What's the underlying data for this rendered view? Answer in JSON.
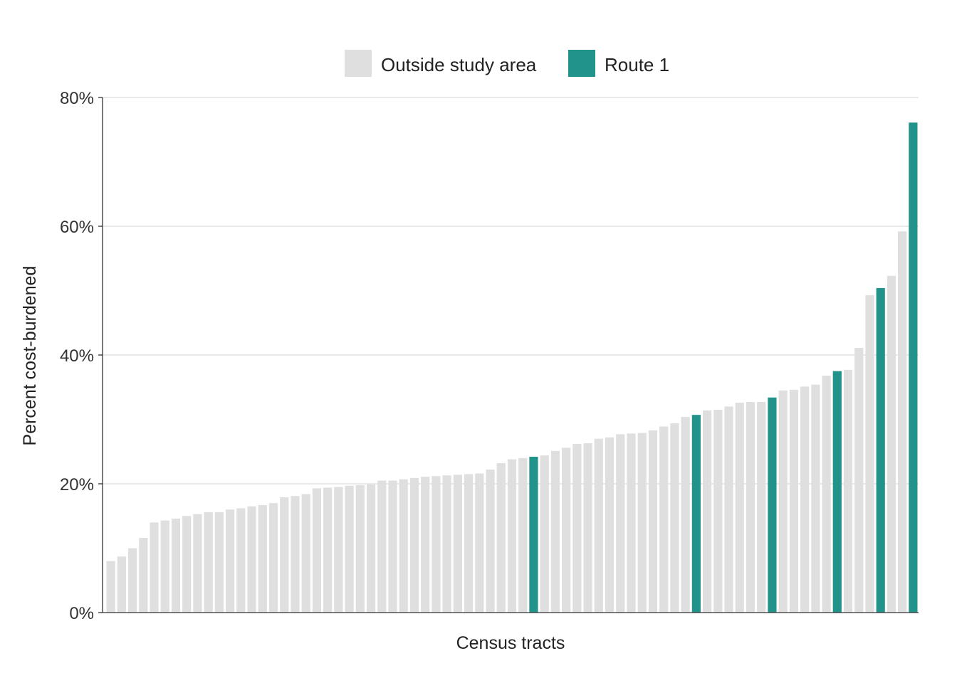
{
  "chart_data": {
    "type": "bar",
    "xlabel": "Census tracts",
    "ylabel": "Percent cost-burdened",
    "ylim": [
      0,
      80
    ],
    "yticks": [
      "0%",
      "20%",
      "40%",
      "60%",
      "80%"
    ],
    "ytick_values": [
      0,
      20,
      40,
      60,
      80
    ],
    "grid": true,
    "legend_position": "top-center",
    "series": [
      {
        "name": "Outside study area",
        "color": "#dfdfdf"
      },
      {
        "name": "Route 1",
        "color": "#22938a"
      }
    ],
    "bars": [
      {
        "value": 8.0,
        "group": "Outside study area"
      },
      {
        "value": 8.7,
        "group": "Outside study area"
      },
      {
        "value": 10.0,
        "group": "Outside study area"
      },
      {
        "value": 11.6,
        "group": "Outside study area"
      },
      {
        "value": 14.0,
        "group": "Outside study area"
      },
      {
        "value": 14.3,
        "group": "Outside study area"
      },
      {
        "value": 14.6,
        "group": "Outside study area"
      },
      {
        "value": 15.0,
        "group": "Outside study area"
      },
      {
        "value": 15.3,
        "group": "Outside study area"
      },
      {
        "value": 15.6,
        "group": "Outside study area"
      },
      {
        "value": 15.6,
        "group": "Outside study area"
      },
      {
        "value": 16.0,
        "group": "Outside study area"
      },
      {
        "value": 16.2,
        "group": "Outside study area"
      },
      {
        "value": 16.5,
        "group": "Outside study area"
      },
      {
        "value": 16.7,
        "group": "Outside study area"
      },
      {
        "value": 17.0,
        "group": "Outside study area"
      },
      {
        "value": 17.9,
        "group": "Outside study area"
      },
      {
        "value": 18.1,
        "group": "Outside study area"
      },
      {
        "value": 18.4,
        "group": "Outside study area"
      },
      {
        "value": 19.3,
        "group": "Outside study area"
      },
      {
        "value": 19.4,
        "group": "Outside study area"
      },
      {
        "value": 19.5,
        "group": "Outside study area"
      },
      {
        "value": 19.7,
        "group": "Outside study area"
      },
      {
        "value": 19.8,
        "group": "Outside study area"
      },
      {
        "value": 19.9,
        "group": "Outside study area"
      },
      {
        "value": 20.5,
        "group": "Outside study area"
      },
      {
        "value": 20.5,
        "group": "Outside study area"
      },
      {
        "value": 20.7,
        "group": "Outside study area"
      },
      {
        "value": 20.9,
        "group": "Outside study area"
      },
      {
        "value": 21.1,
        "group": "Outside study area"
      },
      {
        "value": 21.2,
        "group": "Outside study area"
      },
      {
        "value": 21.3,
        "group": "Outside study area"
      },
      {
        "value": 21.4,
        "group": "Outside study area"
      },
      {
        "value": 21.5,
        "group": "Outside study area"
      },
      {
        "value": 21.6,
        "group": "Outside study area"
      },
      {
        "value": 22.2,
        "group": "Outside study area"
      },
      {
        "value": 23.2,
        "group": "Outside study area"
      },
      {
        "value": 23.8,
        "group": "Outside study area"
      },
      {
        "value": 24.0,
        "group": "Outside study area"
      },
      {
        "value": 24.2,
        "group": "Route 1"
      },
      {
        "value": 24.4,
        "group": "Outside study area"
      },
      {
        "value": 25.1,
        "group": "Outside study area"
      },
      {
        "value": 25.6,
        "group": "Outside study area"
      },
      {
        "value": 26.2,
        "group": "Outside study area"
      },
      {
        "value": 26.3,
        "group": "Outside study area"
      },
      {
        "value": 27.0,
        "group": "Outside study area"
      },
      {
        "value": 27.2,
        "group": "Outside study area"
      },
      {
        "value": 27.7,
        "group": "Outside study area"
      },
      {
        "value": 27.8,
        "group": "Outside study area"
      },
      {
        "value": 27.9,
        "group": "Outside study area"
      },
      {
        "value": 28.3,
        "group": "Outside study area"
      },
      {
        "value": 28.9,
        "group": "Outside study area"
      },
      {
        "value": 29.4,
        "group": "Outside study area"
      },
      {
        "value": 30.4,
        "group": "Outside study area"
      },
      {
        "value": 30.7,
        "group": "Route 1"
      },
      {
        "value": 31.4,
        "group": "Outside study area"
      },
      {
        "value": 31.5,
        "group": "Outside study area"
      },
      {
        "value": 32.0,
        "group": "Outside study area"
      },
      {
        "value": 32.6,
        "group": "Outside study area"
      },
      {
        "value": 32.7,
        "group": "Outside study area"
      },
      {
        "value": 32.7,
        "group": "Outside study area"
      },
      {
        "value": 33.4,
        "group": "Route 1"
      },
      {
        "value": 34.5,
        "group": "Outside study area"
      },
      {
        "value": 34.6,
        "group": "Outside study area"
      },
      {
        "value": 35.1,
        "group": "Outside study area"
      },
      {
        "value": 35.4,
        "group": "Outside study area"
      },
      {
        "value": 36.8,
        "group": "Outside study area"
      },
      {
        "value": 37.5,
        "group": "Route 1"
      },
      {
        "value": 37.7,
        "group": "Outside study area"
      },
      {
        "value": 41.1,
        "group": "Outside study area"
      },
      {
        "value": 49.3,
        "group": "Outside study area"
      },
      {
        "value": 50.4,
        "group": "Route 1"
      },
      {
        "value": 52.3,
        "group": "Outside study area"
      },
      {
        "value": 59.2,
        "group": "Outside study area"
      },
      {
        "value": 76.1,
        "group": "Route 1"
      }
    ]
  }
}
